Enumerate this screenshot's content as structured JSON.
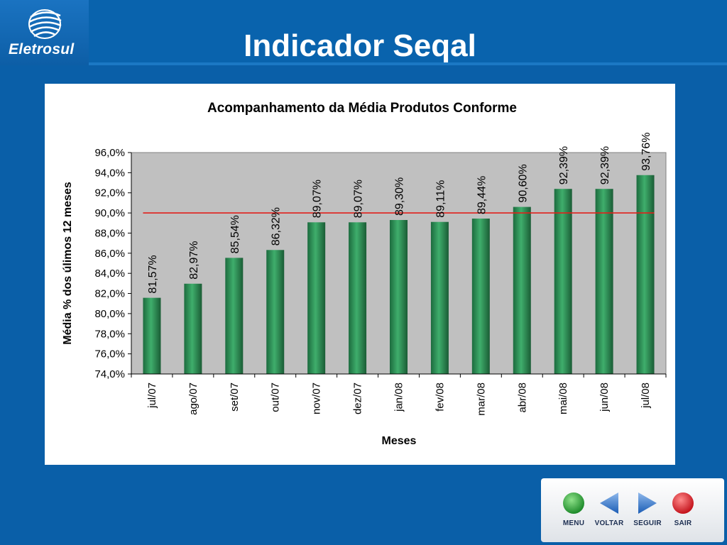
{
  "logo": {
    "text": "Eletrosul"
  },
  "page": {
    "title": "Indicador Seqal"
  },
  "nav": {
    "menu_label": "MENU",
    "back_label": "VOLTAR",
    "next_label": "SEGUIR",
    "exit_label": "SAIR"
  },
  "colors": {
    "background": "#0a5fa8",
    "bar": "#2e8b57",
    "target_line": "#e0201b",
    "plot_area": "#c0c0c0"
  },
  "chart_data": {
    "type": "bar",
    "title": "Acompanhamento da Média Produtos Conforme",
    "xlabel": "Meses",
    "ylabel": "Média % dos úlimos 12 meses",
    "categories": [
      "jul/07",
      "ago/07",
      "set/07",
      "out/07",
      "nov/07",
      "dez/07",
      "jan/08",
      "fev/08",
      "mar/08",
      "abr/08",
      "mai/08",
      "jun/08",
      "jul/08"
    ],
    "values": [
      81.57,
      82.97,
      85.54,
      86.32,
      89.07,
      89.07,
      89.3,
      89.11,
      89.44,
      90.6,
      92.39,
      92.39,
      93.76
    ],
    "data_labels": [
      "81,57%",
      "82,97%",
      "85,54%",
      "86,32%",
      "89,07%",
      "89,07%",
      "89,30%",
      "89,11%",
      "89,44%",
      "90,60%",
      "92,39%",
      "92,39%",
      "93,76%"
    ],
    "ylim": [
      74,
      96
    ],
    "yticks": [
      74,
      76,
      78,
      80,
      82,
      84,
      86,
      88,
      90,
      92,
      94,
      96
    ],
    "ytick_labels": [
      "74,0%",
      "76,0%",
      "78,0%",
      "80,0%",
      "82,0%",
      "84,0%",
      "86,0%",
      "88,0%",
      "90,0%",
      "92,0%",
      "94,0%",
      "96,0%"
    ],
    "target": 90,
    "grid": false,
    "legend": "none"
  }
}
